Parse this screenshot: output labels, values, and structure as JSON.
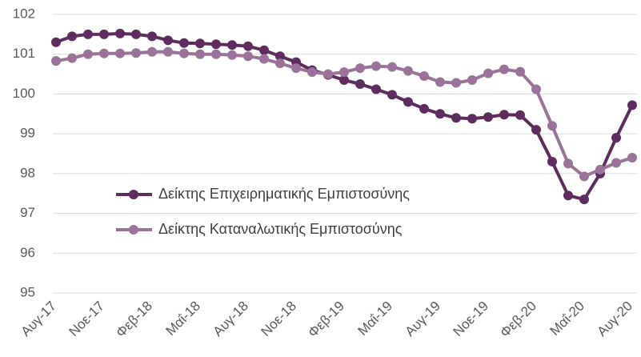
{
  "chart_data": {
    "type": "line",
    "categories": [
      "Αυγ-17",
      null,
      null,
      "Νοε-17",
      null,
      null,
      "Φεβ-18",
      null,
      null,
      "Μαΐ-18",
      null,
      null,
      "Αυγ-18",
      null,
      null,
      "Νοε-18",
      null,
      null,
      "Φεβ-19",
      null,
      null,
      "Μαΐ-19",
      null,
      null,
      "Αυγ-19",
      null,
      null,
      "Νοε-19",
      null,
      null,
      "Φεβ-20",
      null,
      null,
      "Μαΐ-20",
      null,
      null,
      "Αυγ-20"
    ],
    "series": [
      {
        "name": "Δείκτης Επιχειρηματικής Εμπιστοσύνης",
        "color": "#5e2c5e",
        "values": [
          101.3,
          101.45,
          101.5,
          101.5,
          101.52,
          101.5,
          101.45,
          101.35,
          101.28,
          101.27,
          101.25,
          101.23,
          101.2,
          101.1,
          100.95,
          100.8,
          100.6,
          100.48,
          100.35,
          100.25,
          100.12,
          99.98,
          99.8,
          99.63,
          99.5,
          99.4,
          99.38,
          99.42,
          99.48,
          99.47,
          99.1,
          98.3,
          97.45,
          97.35,
          98.0,
          98.9,
          99.72
        ]
      },
      {
        "name": "Δείκτης Καταναλωτικής Εμπιστοσύνης",
        "color": "#9a729a",
        "values": [
          100.83,
          100.9,
          101.0,
          101.02,
          101.02,
          101.03,
          101.06,
          101.06,
          101.02,
          101.0,
          101.0,
          100.98,
          100.95,
          100.88,
          100.77,
          100.65,
          100.55,
          100.5,
          100.55,
          100.65,
          100.7,
          100.68,
          100.58,
          100.45,
          100.3,
          100.28,
          100.35,
          100.52,
          100.62,
          100.56,
          100.12,
          99.2,
          98.25,
          97.93,
          98.1,
          98.27,
          98.4
        ]
      }
    ],
    "ylim": [
      95,
      102
    ],
    "yticks": [
      95,
      96,
      97,
      98,
      99,
      100,
      101,
      102
    ],
    "grid": true,
    "legend": "left"
  }
}
